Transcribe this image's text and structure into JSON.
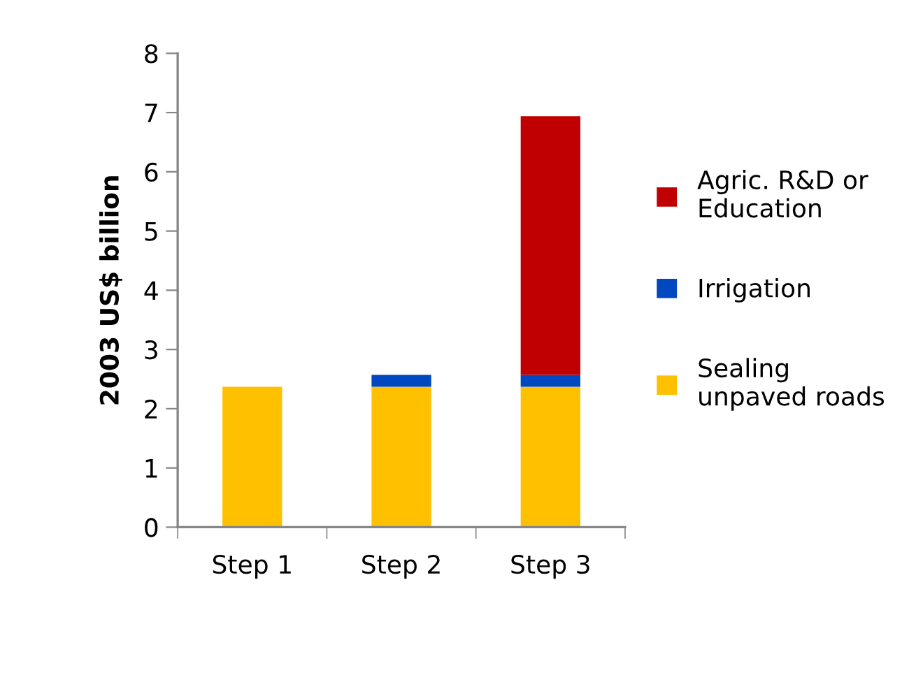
{
  "chart_data": {
    "type": "bar",
    "stacked": true,
    "ylabel": "2003 US$ billion",
    "categories": [
      "Step 1",
      "Step 2",
      "Step 3"
    ],
    "series": [
      {
        "name": "Sealing\nunpaved roads",
        "color": "#ffc000",
        "values": [
          2.37,
          2.37,
          2.37
        ]
      },
      {
        "name": "Irrigation",
        "color": "#0047c0",
        "values": [
          0,
          0.2,
          0.2
        ]
      },
      {
        "name": "Agric. R&D or\nEducation",
        "color": "#c00000",
        "values": [
          0,
          0,
          4.37
        ]
      }
    ],
    "ylim": [
      0,
      8
    ],
    "yticks": [
      0,
      1,
      2,
      3,
      4,
      5,
      6,
      7,
      8
    ],
    "grid": false,
    "legend": "right"
  }
}
